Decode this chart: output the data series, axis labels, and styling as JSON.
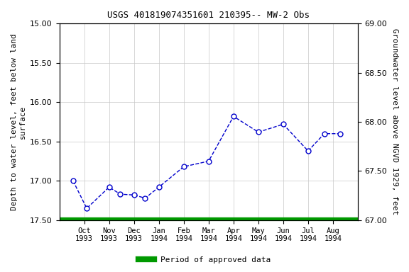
{
  "title": "USGS 401819074351601 210395-- MW-2 Obs",
  "ylabel_left": "Depth to water level, feet below land\nsurface",
  "ylabel_right": "Groundwater level above NGVD 1929, feet",
  "ylim_left": [
    15.0,
    17.5
  ],
  "ylim_right_top": 69.0,
  "ylim_right_bottom": 67.0,
  "yticks_left": [
    15.0,
    15.5,
    16.0,
    16.5,
    17.0,
    17.5
  ],
  "yticks_right": [
    69.0,
    68.5,
    68.0,
    67.5,
    67.0
  ],
  "xtick_labels": [
    "Oct\n1993",
    "Nov\n1993",
    "Dec\n1993",
    "Jan\n1994",
    "Feb\n1994",
    "Mar\n1994",
    "Apr\n1994",
    "May\n1994",
    "Jun\n1994",
    "Jul\n1994",
    "Aug\n1994"
  ],
  "pts_x": [
    0.55,
    1.1,
    2.0,
    2.45,
    3.0,
    3.45,
    4.0,
    5.0,
    6.0,
    7.0,
    8.0,
    9.0,
    10.0,
    10.65,
    11.3
  ],
  "pts_y": [
    17.0,
    17.35,
    17.08,
    17.17,
    17.18,
    17.22,
    17.08,
    16.82,
    16.75,
    16.18,
    16.38,
    16.28,
    16.62,
    16.4,
    16.4
  ],
  "line_color": "#0000cc",
  "marker_facecolor": "#ffffff",
  "marker_edgecolor": "#0000cc",
  "green_bar_color": "#009900",
  "background_color": "#ffffff",
  "grid_color": "#c8c8c8",
  "legend_label": "Period of approved data",
  "xlim": [
    0,
    12
  ]
}
